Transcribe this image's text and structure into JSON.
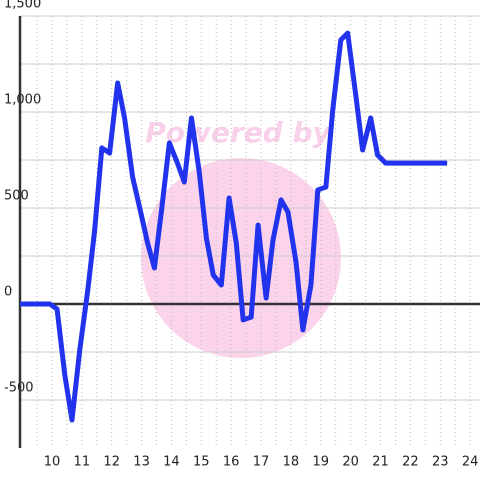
{
  "chart_data": {
    "type": "line",
    "watermark": "Powered by",
    "xlim": [
      8.93,
      24.33
    ],
    "ylim": [
      -750,
      1500
    ],
    "xticks": [
      10,
      11,
      12,
      13,
      14,
      15,
      16,
      17,
      18,
      19,
      20,
      21,
      22,
      23,
      24
    ],
    "yticks": [
      -500,
      0,
      {
        "value": 500,
        "label": "500"
      },
      {
        "value": 1000,
        "label": "1,000"
      },
      {
        "value": 1500,
        "label": "1,500"
      }
    ],
    "grid": true,
    "series": [
      {
        "color": "#2233ee",
        "x": [
          8.93,
          9.93,
          10.17,
          10.43,
          10.67,
          10.93,
          11.2,
          11.43,
          11.67,
          11.93,
          12.2,
          12.43,
          12.7,
          12.97,
          13.2,
          13.43,
          13.67,
          13.93,
          14.2,
          14.43,
          14.67,
          14.93,
          15.17,
          15.4,
          15.67,
          15.93,
          16.17,
          16.4,
          16.67,
          16.9,
          17.17,
          17.4,
          17.67,
          17.9,
          18.17,
          18.4,
          18.67,
          18.9,
          19.17,
          19.4,
          19.67,
          19.9,
          20.17,
          20.4,
          20.67,
          20.9,
          21.17,
          23.23
        ],
        "values": [
          0,
          0,
          -26,
          -370,
          -604,
          -240,
          73,
          385,
          813,
          786,
          1151,
          969,
          661,
          479,
          318,
          188,
          490,
          839,
          734,
          635,
          969,
          688,
          344,
          151,
          99,
          552,
          318,
          -83,
          -68,
          411,
          31,
          333,
          542,
          479,
          219,
          -135,
          99,
          594,
          609,
          1010,
          1375,
          1411,
          1089,
          802,
          969,
          776,
          734,
          734
        ]
      }
    ]
  }
}
